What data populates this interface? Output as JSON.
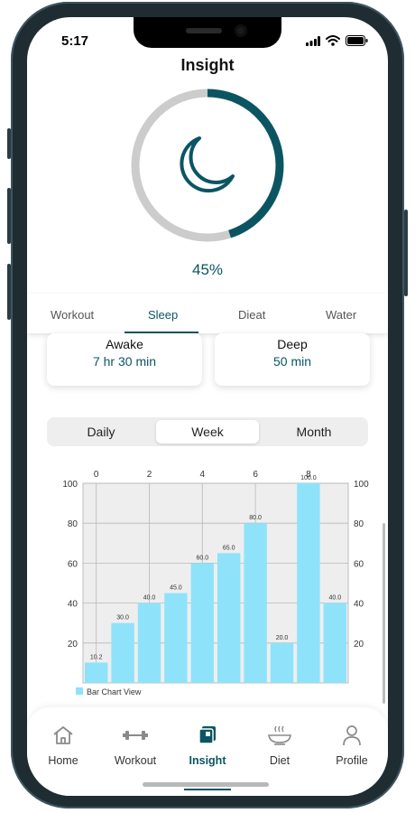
{
  "status_bar": {
    "time": "5:17"
  },
  "header": {
    "title": "Insight"
  },
  "progress": {
    "percent_text": "45%",
    "value": 0.45,
    "icon": "moon-icon",
    "accent": "#0b5563",
    "track": "#cccccc"
  },
  "tabs": [
    {
      "label": "Workout",
      "active": false
    },
    {
      "label": "Sleep",
      "active": true
    },
    {
      "label": "Dieat",
      "active": false
    },
    {
      "label": "Water",
      "active": false
    }
  ],
  "stats": [
    {
      "label": "Awake",
      "value": "7 hr 30 min"
    },
    {
      "label": "Deep",
      "value": "50 min"
    }
  ],
  "range_selector": {
    "options": [
      "Daily",
      "Week",
      "Month"
    ],
    "selected": "Week"
  },
  "chart_data": {
    "type": "bar",
    "x": [
      0,
      1,
      2,
      3,
      4,
      5,
      6,
      7,
      8,
      9
    ],
    "values": [
      10.2,
      30.0,
      40.0,
      45.0,
      60.0,
      65.0,
      80.0,
      20.0,
      100.0,
      40.0
    ],
    "value_labels": [
      "10.2",
      "30.0",
      "40.0",
      "45.0",
      "60.0",
      "65.0",
      "80.0",
      "20.0",
      "100.0",
      "40.0"
    ],
    "x_ticks": [
      "0",
      "2",
      "4",
      "6",
      "8"
    ],
    "y_ticks": [
      "20",
      "40",
      "60",
      "80",
      "100"
    ],
    "ylim": [
      0,
      100
    ],
    "grid": true,
    "legend": "Bar Chart View",
    "legend_position": "bottom-left",
    "bar_color": "#8ee3fb"
  },
  "bottom_nav": [
    {
      "label": "Home",
      "icon": "home-icon",
      "active": false
    },
    {
      "label": "Workout",
      "icon": "dumbbell-icon",
      "active": false
    },
    {
      "label": "Insight",
      "icon": "insight-icon",
      "active": true
    },
    {
      "label": "Diet",
      "icon": "food-bowl-icon",
      "active": false
    },
    {
      "label": "Profile",
      "icon": "person-icon",
      "active": false
    }
  ]
}
